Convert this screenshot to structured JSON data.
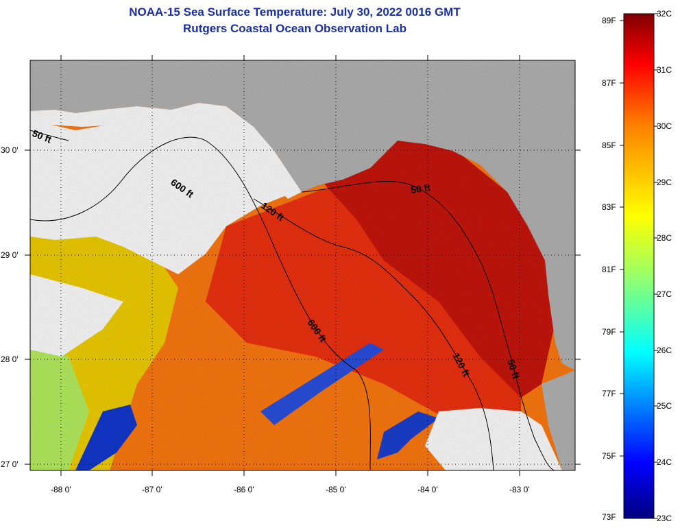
{
  "title": "NOAA-15 Sea Surface Temperature:  July 30, 2022 0016 GMT",
  "subtitle": "Rutgers Coastal Ocean Observation Lab",
  "axes": {
    "lon_ticks": [
      "-88 0'",
      "-87 0'",
      "-86 0'",
      "-85 0'",
      "-84 0'",
      "-83 0'"
    ],
    "lat_ticks": [
      "30 0'",
      "29 0'",
      "28 0'",
      "27 0'"
    ],
    "lon_range": [
      -88.35,
      -82.45
    ],
    "lat_range": [
      26.95,
      30.85
    ]
  },
  "contour_labels": [
    "50 ft",
    "600 ft",
    "120 ft",
    "50 ft",
    "600 ft",
    "120 ft",
    "50 ft"
  ],
  "colorbar": {
    "fahrenheit": [
      "89F",
      "87F",
      "85F",
      "83F",
      "81F",
      "79F",
      "77F",
      "75F",
      "73F"
    ],
    "celsius": [
      "32C",
      "31C",
      "30C",
      "29C",
      "28C",
      "27C",
      "26C",
      "25C",
      "24C",
      "23C"
    ],
    "range_c": [
      23,
      32
    ],
    "colors": [
      "#00007f",
      "#0000ff",
      "#007fff",
      "#00ffff",
      "#7fff7f",
      "#ffff00",
      "#ff7f00",
      "#ff0000",
      "#7f0000"
    ]
  },
  "colors": {
    "land": "#b4b4b4",
    "cloud": "#ffffff",
    "title": "#1a2fa8",
    "warm_red": "#d0180a",
    "orange": "#ff6a00",
    "yellow": "#f5c800",
    "cold_blue": "#1230c8"
  }
}
